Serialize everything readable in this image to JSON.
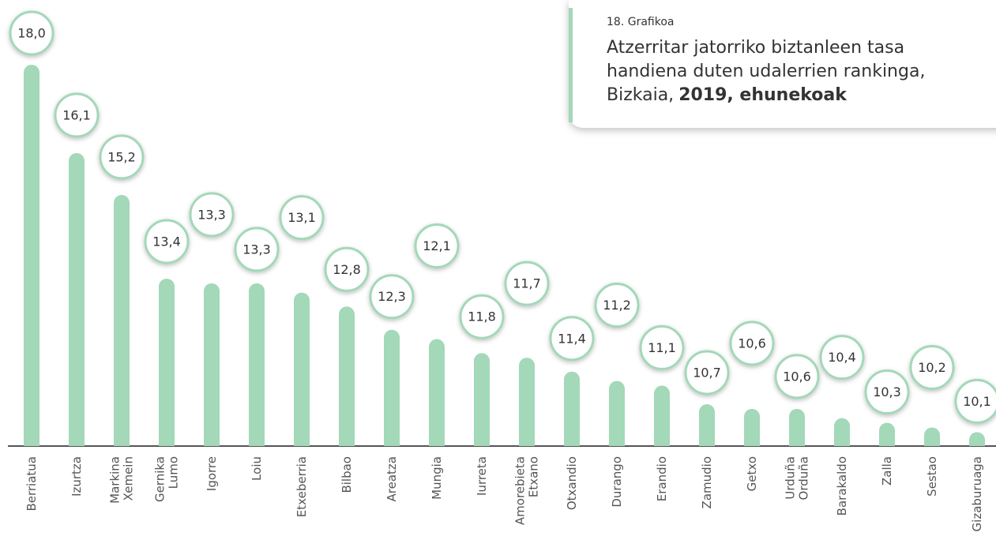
{
  "chart_data": {
    "type": "bar",
    "kicker": "18. Grafikoa",
    "title": "Atzerritar jatorriko biztanleen tasa handiena duten udalerrien rankinga, Bizkaia,",
    "title_emphasis": "2019, ehunekoak",
    "categories": [
      "Berriatua",
      "Izurtza",
      "Markina Xemein",
      "Gernika Lumo",
      "Igorre",
      "Loiu",
      "Etxeberria",
      "Bilbao",
      "Areatza",
      "Mungia",
      "Iurreta",
      "Amorebieta Etxano",
      "Otxandio",
      "Durango",
      "Erandio",
      "Zamudio",
      "Getxo",
      "Urduña Orduña",
      "Barakaldo",
      "Zalla",
      "Sestao",
      "Gizaburuaga"
    ],
    "values": [
      18.0,
      16.1,
      15.2,
      13.4,
      13.3,
      13.3,
      13.1,
      12.8,
      12.3,
      12.1,
      11.8,
      11.7,
      11.4,
      11.2,
      11.1,
      10.7,
      10.6,
      10.6,
      10.4,
      10.3,
      10.2,
      10.1
    ],
    "value_labels": [
      "18,0",
      "16,1",
      "15,2",
      "13,4",
      "13,3",
      "13,3",
      "13,1",
      "12,8",
      "12,3",
      "12,1",
      "11,8",
      "11,7",
      "11,4",
      "11,2",
      "11,1",
      "10,7",
      "10,6",
      "10,6",
      "10,4",
      "10,3",
      "10,2",
      "10,1"
    ],
    "color": "#a3d8b8",
    "ylim": [
      9.8,
      18.0
    ]
  }
}
